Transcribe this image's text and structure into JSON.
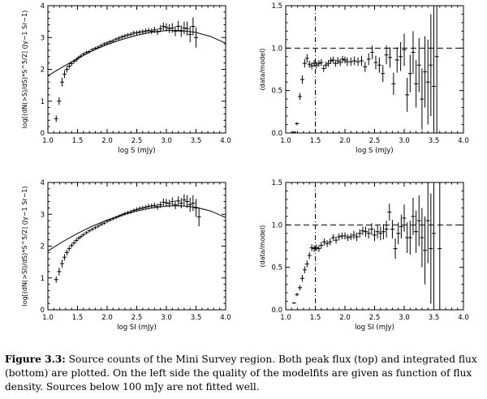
{
  "chart_data": [
    {
      "type": "scatter",
      "panel": "top-left",
      "xlabel": "log S (mJy)",
      "ylabel": "log[(dN(>S)/dS)*S^5/2] (Jy−1 Sr−1)",
      "xlim": [
        1.0,
        4.0
      ],
      "ylim": [
        0,
        4
      ],
      "xticks": [
        "1.0",
        "1.5",
        "2.0",
        "2.5",
        "3.0",
        "3.5",
        "4.0"
      ],
      "yticks": [
        "0",
        "1",
        "2",
        "3",
        "4"
      ],
      "points": [
        [
          1.14,
          0.45
        ],
        [
          1.19,
          1.0
        ],
        [
          1.24,
          1.6
        ],
        [
          1.28,
          1.85
        ],
        [
          1.32,
          2.0
        ],
        [
          1.36,
          2.1
        ],
        [
          1.4,
          2.18
        ],
        [
          1.44,
          2.25
        ],
        [
          1.48,
          2.3
        ],
        [
          1.52,
          2.37
        ],
        [
          1.56,
          2.42
        ],
        [
          1.6,
          2.48
        ],
        [
          1.65,
          2.53
        ],
        [
          1.7,
          2.56
        ],
        [
          1.75,
          2.62
        ],
        [
          1.8,
          2.66
        ],
        [
          1.85,
          2.7
        ],
        [
          1.9,
          2.75
        ],
        [
          1.95,
          2.8
        ],
        [
          2.0,
          2.83
        ],
        [
          2.05,
          2.87
        ],
        [
          2.1,
          2.9
        ],
        [
          2.15,
          2.95
        ],
        [
          2.2,
          2.98
        ],
        [
          2.25,
          3.02
        ],
        [
          2.3,
          3.05
        ],
        [
          2.35,
          3.08
        ],
        [
          2.4,
          3.1
        ],
        [
          2.45,
          3.14
        ],
        [
          2.5,
          3.15
        ],
        [
          2.55,
          3.17
        ],
        [
          2.6,
          3.18
        ],
        [
          2.65,
          3.2
        ],
        [
          2.7,
          3.22
        ],
        [
          2.75,
          3.2
        ],
        [
          2.8,
          3.24
        ],
        [
          2.85,
          3.18
        ],
        [
          2.9,
          3.28
        ],
        [
          2.95,
          3.35
        ],
        [
          3.0,
          3.32
        ],
        [
          3.05,
          3.28
        ],
        [
          3.1,
          3.3
        ],
        [
          3.15,
          3.2
        ],
        [
          3.2,
          3.35
        ],
        [
          3.25,
          3.2
        ],
        [
          3.3,
          3.3
        ],
        [
          3.35,
          3.28
        ],
        [
          3.4,
          3.1
        ],
        [
          3.45,
          3.35
        ],
        [
          3.5,
          3.0
        ]
      ],
      "errors": [
        0.1,
        0.12,
        0.14,
        0.12,
        0.1,
        0.08,
        0.07,
        0.06,
        0.06,
        0.05,
        0.05,
        0.05,
        0.05,
        0.05,
        0.05,
        0.05,
        0.05,
        0.05,
        0.05,
        0.05,
        0.05,
        0.05,
        0.05,
        0.06,
        0.06,
        0.06,
        0.06,
        0.06,
        0.07,
        0.07,
        0.07,
        0.08,
        0.08,
        0.08,
        0.09,
        0.1,
        0.1,
        0.11,
        0.12,
        0.13,
        0.14,
        0.15,
        0.16,
        0.17,
        0.18,
        0.2,
        0.22,
        0.25,
        0.28,
        0.32
      ],
      "model": [
        [
          1.0,
          1.8
        ],
        [
          1.25,
          2.08
        ],
        [
          1.5,
          2.34
        ],
        [
          1.75,
          2.58
        ],
        [
          2.0,
          2.78
        ],
        [
          2.25,
          2.94
        ],
        [
          2.5,
          3.07
        ],
        [
          2.75,
          3.17
        ],
        [
          3.0,
          3.22
        ],
        [
          3.25,
          3.22
        ],
        [
          3.5,
          3.16
        ],
        [
          3.75,
          3.03
        ],
        [
          4.0,
          2.82
        ]
      ]
    },
    {
      "type": "scatter",
      "panel": "top-right",
      "xlabel": "log S (mJy)",
      "ylabel": "(data/model)",
      "xlim": [
        1.0,
        4.0
      ],
      "ylim": [
        0,
        1.5
      ],
      "xticks": [
        "1.0",
        "1.5",
        "2.0",
        "2.5",
        "3.0",
        "3.5",
        "4.0"
      ],
      "yticks": [
        "0.0",
        "0.5",
        "1.0",
        "1.5"
      ],
      "reference_y": 1.0,
      "vline_x": 1.5,
      "points": [
        [
          1.14,
          0.01
        ],
        [
          1.19,
          0.11
        ],
        [
          1.24,
          0.43
        ],
        [
          1.28,
          0.63
        ],
        [
          1.32,
          0.82
        ],
        [
          1.36,
          0.88
        ],
        [
          1.4,
          0.81
        ],
        [
          1.44,
          0.79
        ],
        [
          1.48,
          0.82
        ],
        [
          1.52,
          0.8
        ],
        [
          1.56,
          0.82
        ],
        [
          1.6,
          0.83
        ],
        [
          1.64,
          0.76
        ],
        [
          1.68,
          0.8
        ],
        [
          1.72,
          0.82
        ],
        [
          1.76,
          0.85
        ],
        [
          1.8,
          0.86
        ],
        [
          1.84,
          0.82
        ],
        [
          1.88,
          0.85
        ],
        [
          1.92,
          0.83
        ],
        [
          1.96,
          0.87
        ],
        [
          2.0,
          0.86
        ],
        [
          2.04,
          0.84
        ],
        [
          2.1,
          0.84
        ],
        [
          2.16,
          0.85
        ],
        [
          2.22,
          0.84
        ],
        [
          2.28,
          0.85
        ],
        [
          2.34,
          0.78
        ],
        [
          2.4,
          0.87
        ],
        [
          2.46,
          0.95
        ],
        [
          2.52,
          0.83
        ],
        [
          2.58,
          0.8
        ],
        [
          2.64,
          0.7
        ],
        [
          2.7,
          0.92
        ],
        [
          2.76,
          0.89
        ],
        [
          2.82,
          0.58
        ],
        [
          2.88,
          0.86
        ],
        [
          2.94,
          0.9
        ],
        [
          3.0,
          0.98
        ],
        [
          3.05,
          0.45
        ],
        [
          3.1,
          0.7
        ],
        [
          3.15,
          0.95
        ],
        [
          3.2,
          0.58
        ],
        [
          3.25,
          0.8
        ],
        [
          3.3,
          0.4
        ],
        [
          3.35,
          0.72
        ],
        [
          3.4,
          0.6
        ],
        [
          3.45,
          0.8
        ],
        [
          3.5,
          0.55
        ],
        [
          3.55,
          0.9
        ]
      ],
      "errors": [
        0.01,
        0.02,
        0.04,
        0.05,
        0.05,
        0.05,
        0.04,
        0.04,
        0.04,
        0.04,
        0.04,
        0.04,
        0.04,
        0.04,
        0.04,
        0.04,
        0.04,
        0.04,
        0.04,
        0.04,
        0.04,
        0.04,
        0.05,
        0.05,
        0.05,
        0.05,
        0.06,
        0.06,
        0.07,
        0.08,
        0.08,
        0.09,
        0.1,
        0.11,
        0.12,
        0.13,
        0.15,
        0.17,
        0.19,
        0.2,
        0.22,
        0.25,
        0.28,
        0.32,
        0.36,
        0.42,
        0.5,
        0.6,
        0.9,
        1.3
      ]
    },
    {
      "type": "scatter",
      "panel": "bottom-left",
      "xlabel": "log SI (mJy)",
      "ylabel": "log[(dN(>SI)/dS)*S^5/2] (Jy−1 Sr−1)",
      "xlim": [
        1.0,
        4.0
      ],
      "ylim": [
        0,
        4
      ],
      "xticks": [
        "1.0",
        "1.5",
        "2.0",
        "2.5",
        "3.0",
        "3.5",
        "4.0"
      ],
      "yticks": [
        "0",
        "1",
        "2",
        "3",
        "4"
      ],
      "points": [
        [
          1.14,
          0.95
        ],
        [
          1.19,
          1.2
        ],
        [
          1.24,
          1.45
        ],
        [
          1.28,
          1.65
        ],
        [
          1.32,
          1.8
        ],
        [
          1.36,
          1.92
        ],
        [
          1.4,
          2.02
        ],
        [
          1.44,
          2.1
        ],
        [
          1.48,
          2.18
        ],
        [
          1.52,
          2.25
        ],
        [
          1.56,
          2.3
        ],
        [
          1.6,
          2.36
        ],
        [
          1.65,
          2.42
        ],
        [
          1.7,
          2.48
        ],
        [
          1.75,
          2.53
        ],
        [
          1.8,
          2.58
        ],
        [
          1.85,
          2.63
        ],
        [
          1.9,
          2.68
        ],
        [
          1.95,
          2.72
        ],
        [
          2.0,
          2.78
        ],
        [
          2.05,
          2.82
        ],
        [
          2.1,
          2.86
        ],
        [
          2.15,
          2.9
        ],
        [
          2.2,
          2.94
        ],
        [
          2.25,
          2.98
        ],
        [
          2.3,
          3.02
        ],
        [
          2.35,
          3.05
        ],
        [
          2.4,
          3.08
        ],
        [
          2.45,
          3.12
        ],
        [
          2.5,
          3.15
        ],
        [
          2.55,
          3.18
        ],
        [
          2.6,
          3.2
        ],
        [
          2.65,
          3.22
        ],
        [
          2.7,
          3.25
        ],
        [
          2.75,
          3.26
        ],
        [
          2.8,
          3.28
        ],
        [
          2.85,
          3.24
        ],
        [
          2.9,
          3.3
        ],
        [
          2.95,
          3.38
        ],
        [
          3.0,
          3.36
        ],
        [
          3.05,
          3.34
        ],
        [
          3.1,
          3.4
        ],
        [
          3.15,
          3.3
        ],
        [
          3.2,
          3.42
        ],
        [
          3.25,
          3.35
        ],
        [
          3.3,
          3.45
        ],
        [
          3.35,
          3.4
        ],
        [
          3.4,
          3.3
        ],
        [
          3.45,
          3.35
        ],
        [
          3.5,
          3.2
        ],
        [
          3.55,
          2.92
        ]
      ],
      "errors": [
        0.1,
        0.12,
        0.12,
        0.1,
        0.09,
        0.08,
        0.07,
        0.06,
        0.06,
        0.05,
        0.05,
        0.05,
        0.05,
        0.05,
        0.05,
        0.05,
        0.05,
        0.05,
        0.05,
        0.05,
        0.05,
        0.05,
        0.05,
        0.05,
        0.05,
        0.06,
        0.06,
        0.06,
        0.06,
        0.07,
        0.07,
        0.07,
        0.07,
        0.08,
        0.08,
        0.09,
        0.1,
        0.1,
        0.11,
        0.12,
        0.12,
        0.13,
        0.14,
        0.15,
        0.16,
        0.18,
        0.2,
        0.22,
        0.25,
        0.28,
        0.3
      ],
      "model": [
        [
          1.0,
          1.85
        ],
        [
          1.25,
          2.14
        ],
        [
          1.5,
          2.4
        ],
        [
          1.75,
          2.63
        ],
        [
          2.0,
          2.82
        ],
        [
          2.25,
          2.98
        ],
        [
          2.5,
          3.1
        ],
        [
          2.75,
          3.2
        ],
        [
          3.0,
          3.26
        ],
        [
          3.25,
          3.27
        ],
        [
          3.5,
          3.22
        ],
        [
          3.75,
          3.1
        ],
        [
          4.0,
          2.9
        ]
      ]
    },
    {
      "type": "scatter",
      "panel": "bottom-right",
      "xlabel": "log SI (mJy)",
      "ylabel": "(data/model)",
      "xlim": [
        1.0,
        4.0
      ],
      "ylim": [
        0,
        1.5
      ],
      "xticks": [
        "1.0",
        "1.5",
        "2.0",
        "2.5",
        "3.0",
        "3.5",
        "4.0"
      ],
      "yticks": [
        "0.0",
        "0.5",
        "1.0",
        "1.5"
      ],
      "reference_y": 1.0,
      "vline_x": 1.5,
      "points": [
        [
          1.14,
          0.08
        ],
        [
          1.19,
          0.18
        ],
        [
          1.24,
          0.26
        ],
        [
          1.28,
          0.37
        ],
        [
          1.32,
          0.47
        ],
        [
          1.36,
          0.54
        ],
        [
          1.4,
          0.64
        ],
        [
          1.44,
          0.73
        ],
        [
          1.48,
          0.72
        ],
        [
          1.52,
          0.73
        ],
        [
          1.56,
          0.72
        ],
        [
          1.6,
          0.76
        ],
        [
          1.65,
          0.8
        ],
        [
          1.7,
          0.78
        ],
        [
          1.75,
          0.8
        ],
        [
          1.8,
          0.85
        ],
        [
          1.85,
          0.82
        ],
        [
          1.9,
          0.86
        ],
        [
          1.95,
          0.87
        ],
        [
          2.0,
          0.87
        ],
        [
          2.05,
          0.85
        ],
        [
          2.1,
          0.86
        ],
        [
          2.15,
          0.88
        ],
        [
          2.2,
          0.86
        ],
        [
          2.25,
          0.9
        ],
        [
          2.3,
          0.93
        ],
        [
          2.35,
          0.92
        ],
        [
          2.4,
          0.9
        ],
        [
          2.45,
          0.95
        ],
        [
          2.5,
          0.88
        ],
        [
          2.55,
          0.92
        ],
        [
          2.6,
          0.9
        ],
        [
          2.65,
          0.92
        ],
        [
          2.7,
          0.95
        ],
        [
          2.75,
          1.15
        ],
        [
          2.8,
          0.95
        ],
        [
          2.85,
          0.72
        ],
        [
          2.9,
          0.9
        ],
        [
          2.95,
          0.98
        ],
        [
          3.0,
          1.08
        ],
        [
          3.05,
          0.85
        ],
        [
          3.1,
          0.85
        ],
        [
          3.15,
          1.1
        ],
        [
          3.2,
          0.92
        ],
        [
          3.25,
          1.05
        ],
        [
          3.3,
          0.85
        ],
        [
          3.35,
          0.7
        ],
        [
          3.4,
          1.05
        ],
        [
          3.45,
          0.72
        ],
        [
          3.5,
          0.9
        ],
        [
          3.6,
          0.72
        ]
      ],
      "errors": [
        0.01,
        0.02,
        0.03,
        0.04,
        0.04,
        0.04,
        0.04,
        0.04,
        0.04,
        0.04,
        0.04,
        0.04,
        0.04,
        0.04,
        0.04,
        0.04,
        0.04,
        0.04,
        0.04,
        0.04,
        0.04,
        0.04,
        0.05,
        0.05,
        0.05,
        0.05,
        0.06,
        0.06,
        0.07,
        0.07,
        0.08,
        0.08,
        0.09,
        0.1,
        0.1,
        0.11,
        0.12,
        0.13,
        0.14,
        0.16,
        0.18,
        0.2,
        0.22,
        0.25,
        0.3,
        0.35,
        0.4,
        0.5,
        0.65,
        0.9,
        1.2
      ]
    }
  ],
  "caption": {
    "label": "Figure 3.3:",
    "text": "Source counts of the Mini Survey region. Both peak flux (top) and integrated flux (bottom) are plotted. On the left side the quality of the modelfits are given as function of flux density. Sources below 100 mJy are not fitted well."
  }
}
